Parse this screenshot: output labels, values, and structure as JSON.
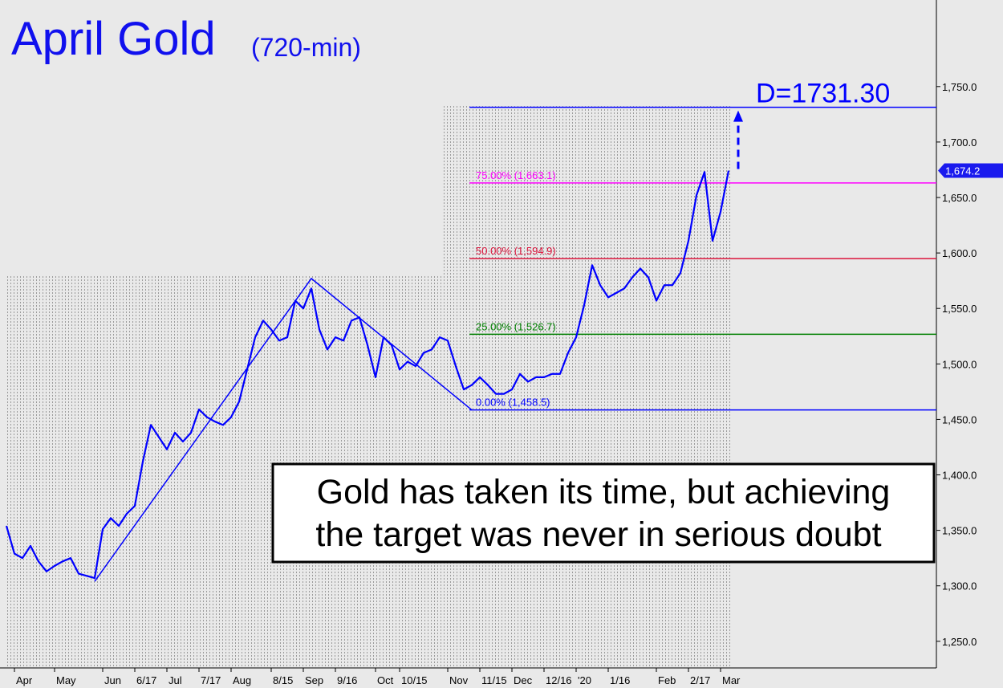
{
  "chart_data": {
    "type": "line",
    "title": "April Gold",
    "subtitle": "(720-min)",
    "annotation": [
      "Gold has taken its time, but achieving",
      "the target was never in serious doubt"
    ],
    "categories": [
      null,
      "Apr",
      null,
      null,
      null,
      null,
      "May",
      null,
      null,
      null,
      null,
      null,
      "Jun",
      null,
      null,
      null,
      "6/17",
      null,
      null,
      null,
      "Jul",
      null,
      null,
      null,
      "7/17",
      null,
      null,
      null,
      "Aug",
      null,
      null,
      null,
      null,
      "8/15",
      null,
      null,
      null,
      "Sep",
      null,
      null,
      null,
      "9/16",
      null,
      null,
      null,
      null,
      "Oct",
      null,
      null,
      "10/15",
      null,
      null,
      null,
      null,
      null,
      "Nov",
      null,
      null,
      null,
      "11/15",
      null,
      null,
      null,
      "Dec",
      null,
      null,
      null,
      "12/16",
      null,
      null,
      null,
      "'20",
      null,
      null,
      null,
      "1/16",
      null,
      null,
      null,
      null,
      null,
      "Feb",
      null,
      null,
      null,
      "2/17",
      null,
      null,
      null,
      "Mar",
      null
    ],
    "series": [
      {
        "color": "#0000ff",
        "values": [
          1354,
          1329,
          1325,
          1336,
          1322,
          1313,
          1318,
          1322,
          1325,
          1311,
          1309,
          1307,
          1351,
          1361,
          1354,
          1365,
          1372,
          1412,
          1445,
          1434,
          1423,
          1438,
          1430,
          1438,
          1459,
          1452,
          1448,
          1445,
          1452,
          1466,
          1495,
          1524,
          1539,
          1531,
          1521,
          1524,
          1557,
          1550,
          1568,
          1531,
          1513,
          1524,
          1521,
          1539,
          1542,
          1517,
          1488,
          1524,
          1517,
          1495,
          1502,
          1498,
          1510,
          1513,
          1524,
          1521,
          1498,
          1477,
          1481,
          1488,
          1481,
          1473,
          1473,
          1477,
          1491,
          1484,
          1488,
          1488,
          1491,
          1491,
          1510,
          1524,
          1553,
          1589,
          1571,
          1560,
          1564,
          1568,
          1578,
          1586,
          1578,
          1557,
          1571,
          1571,
          1582,
          1611,
          1652,
          1673,
          1611,
          1637,
          1674.2
        ]
      }
    ],
    "pattern": {
      "color": "#0000ff",
      "x": [
        11,
        38,
        58
      ],
      "values": [
        1304,
        1577,
        1458.5
      ]
    },
    "levels": [
      {
        "label": "75.00% (1,663.1)",
        "value": 1663.1,
        "color": "#ff00ff"
      },
      {
        "label": "50.00% (1,594.9)",
        "value": 1594.9,
        "color": "#dc143c"
      },
      {
        "label": "25.00% (1,526.7)",
        "value": 1526.7,
        "color": "#008000"
      },
      {
        "label": "0.00% (1,458.5)",
        "value": 1458.5,
        "color": "#0000ff"
      }
    ],
    "target": {
      "label": "D=1731.30",
      "value": 1731.3,
      "color": "#0000ff"
    },
    "last_price": {
      "value": 1674.2,
      "label": "1,674.2"
    },
    "ylim": [
      1226,
      1828
    ],
    "yticks": [
      {
        "value": 1250,
        "label": "1,250.0"
      },
      {
        "value": 1300,
        "label": "1,300.0"
      },
      {
        "value": 1350,
        "label": "1,350.0"
      },
      {
        "value": 1400,
        "label": "1,400.0"
      },
      {
        "value": 1450,
        "label": "1,450.0"
      },
      {
        "value": 1500,
        "label": "1,500.0"
      },
      {
        "value": 1550,
        "label": "1,550.0"
      },
      {
        "value": 1600,
        "label": "1,600.0"
      },
      {
        "value": 1650,
        "label": "1,650.0"
      },
      {
        "value": 1700,
        "label": "1,700.0"
      },
      {
        "value": 1750,
        "label": "1,750.0"
      }
    ]
  }
}
